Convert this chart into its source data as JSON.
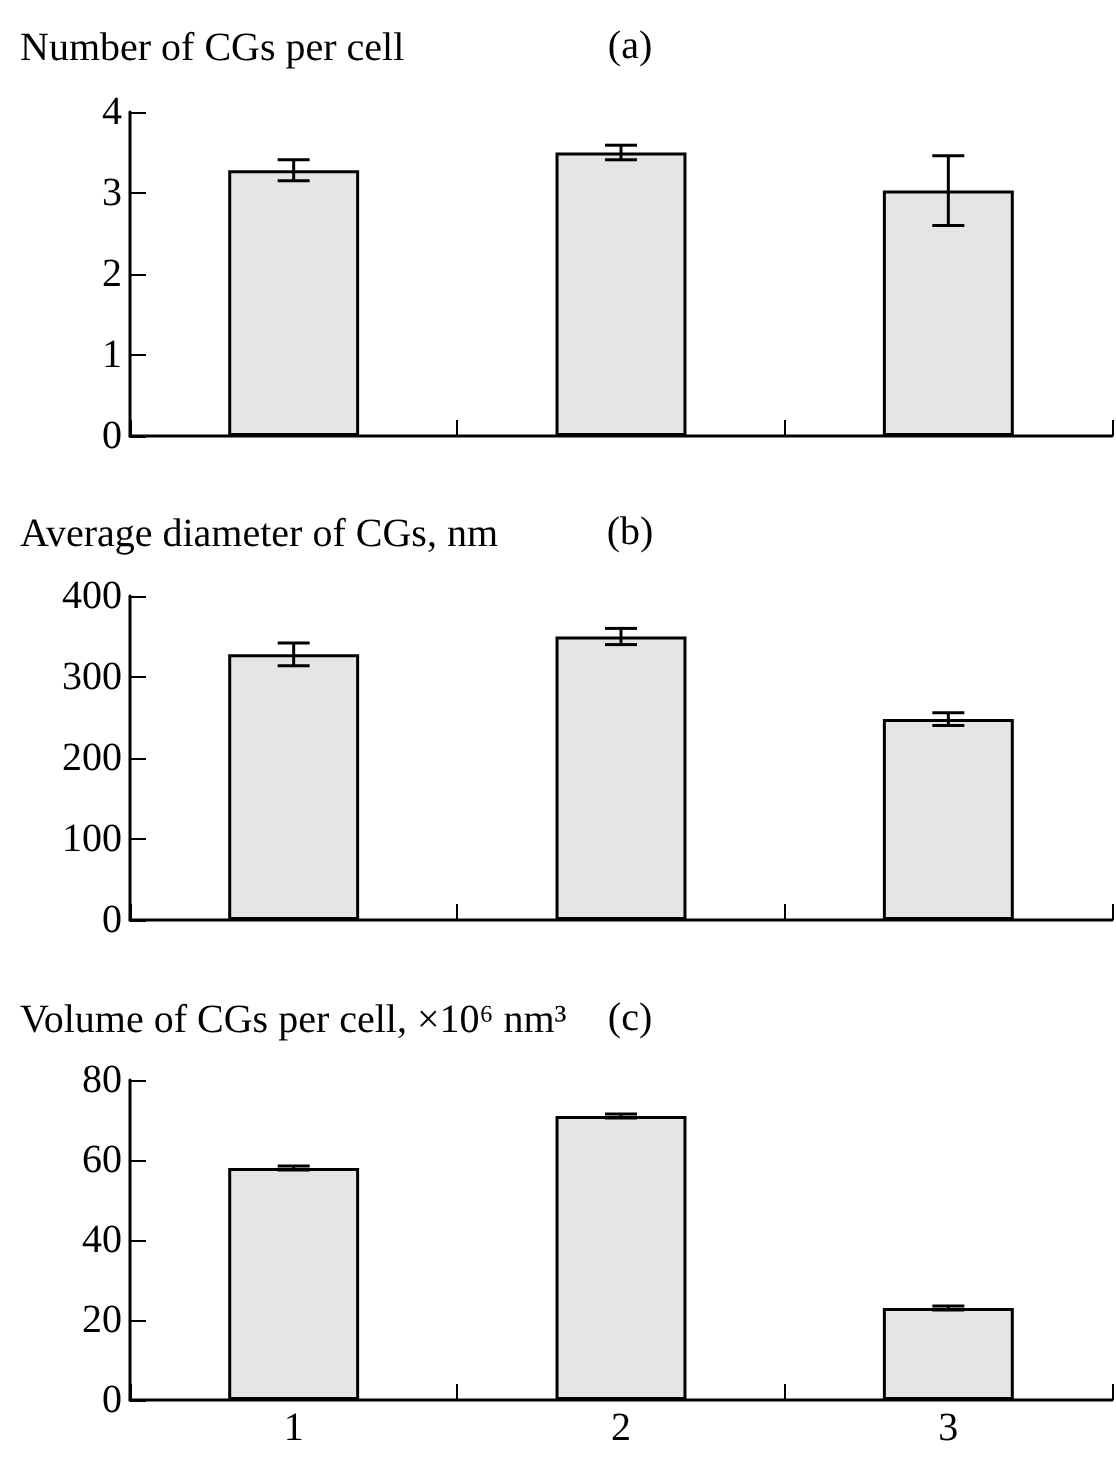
{
  "chart_data": [
    {
      "type": "bar",
      "title": "(a)",
      "ylabel": "Number of CGs per cell",
      "categories": [
        "1",
        "2",
        "3"
      ],
      "values": [
        3.28,
        3.5,
        3.03
      ],
      "errors": [
        0.13,
        0.09,
        0.43
      ],
      "color": "#e5e5e5",
      "ylim": [
        0,
        4
      ],
      "yticks": [
        0,
        1,
        2,
        3,
        4
      ],
      "tick_labels": "y"
    },
    {
      "type": "bar",
      "title": "(b)",
      "ylabel": "Average diameter of CGs, nm",
      "categories": [
        "1",
        "2",
        "3"
      ],
      "values": [
        328,
        350,
        248
      ],
      "errors": [
        14,
        10,
        8
      ],
      "color": "#e5e5e5",
      "ylim": [
        0,
        400
      ],
      "yticks": [
        0,
        100,
        200,
        300,
        400
      ],
      "tick_labels": "y"
    },
    {
      "type": "bar",
      "title": "(c)",
      "ylabel": "Volume of CGs per cell, ×10⁶ nm³",
      "categories": [
        "1",
        "2",
        "3"
      ],
      "values": [
        58,
        71,
        23
      ],
      "errors": [
        0.5,
        0.5,
        0.5
      ],
      "color": "#e5e5e5",
      "ylim": [
        0,
        80
      ],
      "yticks": [
        0,
        20,
        40,
        60,
        80
      ]
    }
  ]
}
